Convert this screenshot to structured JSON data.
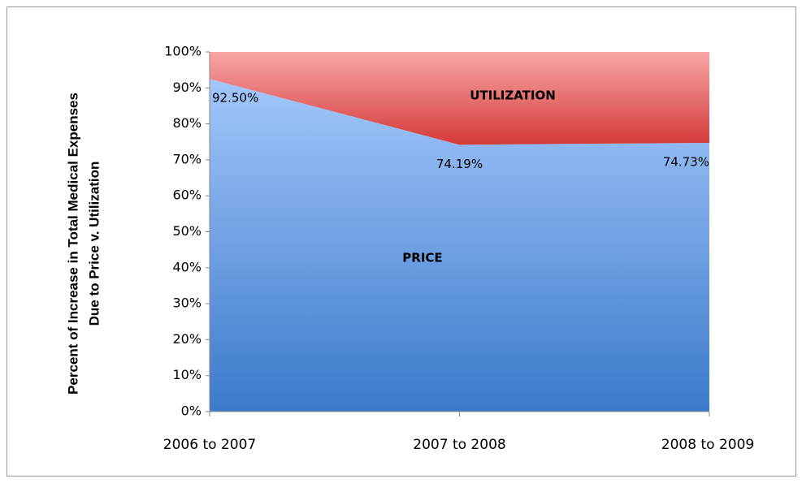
{
  "chart_data": {
    "type": "stacked_area",
    "ylabel": [
      "Percent of Increase in Total Medical Expenses",
      "Due to Price v. Utilization"
    ],
    "categories": [
      "2006 to 2007",
      "2007 to 2008",
      "2008 to 2009"
    ],
    "series": [
      {
        "name": "PRICE",
        "color": "#6b9de3",
        "values": [
          92.5,
          74.19,
          74.73
        ],
        "value_labels": [
          "92.50%",
          "74.19%",
          "74.73%"
        ]
      },
      {
        "name": "UTILIZATION",
        "color": "#e26b6b",
        "values": [
          7.5,
          25.81,
          25.27
        ]
      }
    ],
    "ylim": [
      0,
      100
    ],
    "yticks": [
      {
        "value": 0,
        "label": "0%"
      },
      {
        "value": 10,
        "label": "10%"
      },
      {
        "value": 20,
        "label": "20%"
      },
      {
        "value": 30,
        "label": "30%"
      },
      {
        "value": 40,
        "label": "40%"
      },
      {
        "value": 50,
        "label": "50%"
      },
      {
        "value": 60,
        "label": "60%"
      },
      {
        "value": 70,
        "label": "70%"
      },
      {
        "value": 80,
        "label": "80%"
      },
      {
        "value": 90,
        "label": "90%"
      },
      {
        "value": 100,
        "label": "100%"
      }
    ]
  }
}
